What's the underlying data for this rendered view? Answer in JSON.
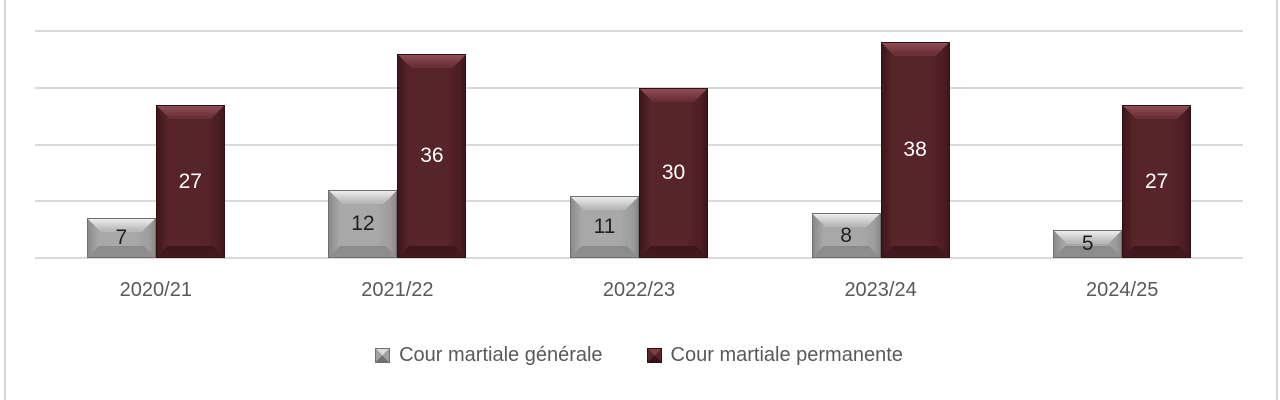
{
  "frame": {
    "background": "#ffffff",
    "side_border_color": "#d6d6d6"
  },
  "chart_data": {
    "type": "bar",
    "title": "",
    "xlabel": "",
    "ylabel": "",
    "categories": [
      "2020/21",
      "2021/22",
      "2022/23",
      "2023/24",
      "2024/25"
    ],
    "series": [
      {
        "name": "Cour martiale générale",
        "values": [
          7,
          12,
          11,
          8,
          5
        ],
        "color": "#a8a8a8",
        "data_label_color": "#1f1f1f"
      },
      {
        "name": "Cour martiale permanente",
        "values": [
          27,
          36,
          30,
          38,
          27
        ],
        "color": "#57242a",
        "data_label_color": "#ffffff"
      }
    ],
    "data_labels_visible": true,
    "ylim": [
      0,
      40
    ],
    "y_gridline_interval": 10,
    "y_axis_tick_labels_visible": false,
    "grid": true,
    "gridline_color": "#d9d9d9",
    "axis_label_color": "#595959",
    "legend_position": "bottom",
    "bar_style": "3d-bevel"
  }
}
